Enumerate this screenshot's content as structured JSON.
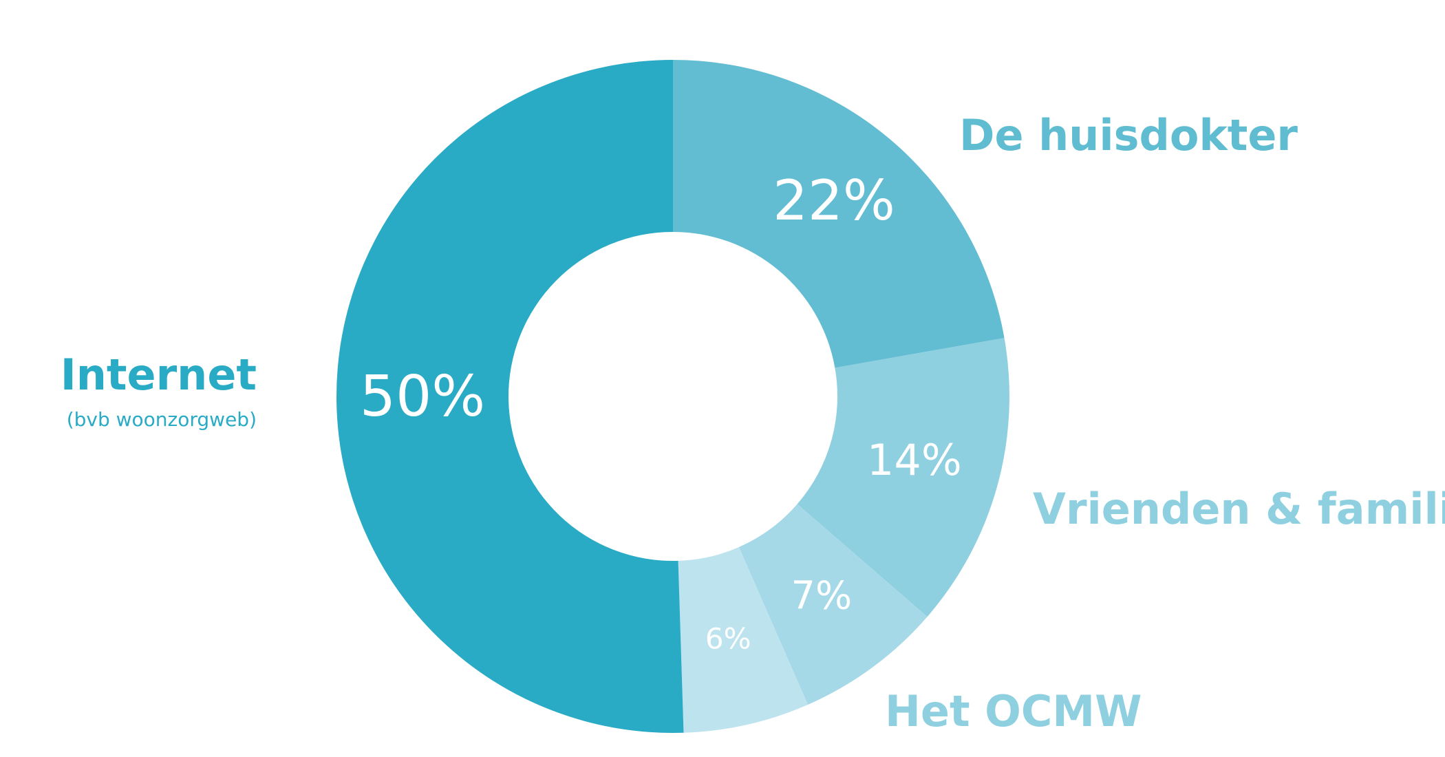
{
  "chart_data": {
    "type": "donut",
    "categories": [
      "De huisdokter",
      "Vrienden & familie",
      "Het OCMW",
      null,
      "Internet"
    ],
    "category_subtitles": [
      null,
      null,
      null,
      null,
      "(bvb woonzorgweb)"
    ],
    "values": [
      22,
      14,
      7,
      6,
      50
    ],
    "value_labels": [
      "22%",
      "14%",
      "7%",
      "6%",
      "50%"
    ],
    "colors": [
      "#62bdd2",
      "#8ecfe0",
      "#a6d9e7",
      "#bde3ee",
      "#2aabc5"
    ],
    "label_colors": [
      "#5fbcd1",
      "#8ecfe0",
      "#8ecfe0",
      null,
      "#2aabc5"
    ]
  }
}
